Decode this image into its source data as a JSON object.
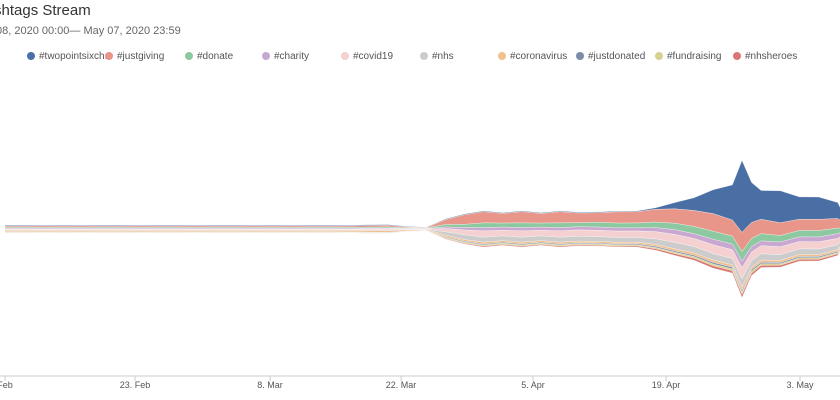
{
  "header": {
    "title": "shtags Stream",
    "subtitle": "08, 2020 00:00— May 07, 2020 23:59"
  },
  "colors": {
    "#twopointsixch...": "#4a6fa5",
    "#justgiving": "#e8968a",
    "#donate": "#8cc9a0",
    "#charity": "#c8a8d0",
    "#covid19": "#f5d0d0",
    "#nhs": "#cccccc",
    "#coronavirus": "#f0c090",
    "#justdonated": "#7a8ca8",
    "#fundraising": "#d8d090",
    "#nhsheroes": "#d87870"
  },
  "chart_data": {
    "type": "area",
    "subtype": "streamgraph",
    "x_ticks": [
      "Feb",
      "23. Feb",
      "8. Mar",
      "22. Mar",
      "5. Apr",
      "19. Apr",
      "3. May"
    ],
    "x": [
      "Feb 09",
      "Feb 11",
      "Feb 13",
      "Feb 15",
      "Feb 17",
      "Feb 19",
      "Feb 21",
      "Feb 23",
      "Feb 25",
      "Feb 27",
      "Feb 29",
      "Mar 02",
      "Mar 04",
      "Mar 06",
      "Mar 08",
      "Mar 10",
      "Mar 12",
      "Mar 14",
      "Mar 16",
      "Mar 18",
      "Mar 20",
      "Mar 22",
      "Mar 24",
      "Mar 26",
      "Mar 28",
      "Mar 30",
      "Apr 01",
      "Apr 03",
      "Apr 05",
      "Apr 07",
      "Apr 09",
      "Apr 11",
      "Apr 13",
      "Apr 15",
      "Apr 17",
      "Apr 19",
      "Apr 21",
      "Apr 23",
      "Apr 25",
      "Apr 26",
      "Apr 27",
      "Apr 28",
      "Apr 30",
      "May 02",
      "May 04",
      "May 06",
      "May 07"
    ],
    "series": [
      {
        "name": "#twopointsixch...",
        "values": [
          0.5,
          0.5,
          0.5,
          0.5,
          0.5,
          0.5,
          0.5,
          0.5,
          0.5,
          0.5,
          0.5,
          0.5,
          0.5,
          0.5,
          0.5,
          0.5,
          0.5,
          0.5,
          0.5,
          0.5,
          0.5,
          0.4,
          0.2,
          0.5,
          0.5,
          0.5,
          0.5,
          0.5,
          0.5,
          0.5,
          0.5,
          0.5,
          0.5,
          0.5,
          1,
          4,
          8,
          15,
          22,
          45,
          25,
          18,
          20,
          14,
          14,
          10,
          2
        ]
      },
      {
        "name": "#justgiving",
        "values": [
          0.8,
          0.8,
          0.9,
          0.8,
          0.9,
          0.8,
          0.8,
          0.9,
          0.8,
          0.8,
          0.9,
          0.8,
          0.8,
          0.9,
          0.8,
          0.9,
          0.8,
          0.8,
          0.9,
          1,
          1,
          0.5,
          0.3,
          3,
          6,
          7,
          6,
          7,
          6,
          7,
          6,
          6,
          7,
          7,
          8,
          9,
          10,
          11,
          10,
          12,
          10,
          9,
          8,
          7,
          7,
          6,
          2
        ]
      },
      {
        "name": "#donate",
        "values": [
          0.6,
          0.6,
          0.6,
          0.6,
          0.6,
          0.6,
          0.6,
          0.6,
          0.6,
          0.6,
          0.6,
          0.6,
          0.6,
          0.6,
          0.6,
          0.6,
          0.6,
          0.6,
          0.6,
          0.6,
          0.7,
          0.4,
          0.3,
          1.5,
          2,
          3,
          2.5,
          3,
          2.5,
          3,
          2.5,
          3,
          3,
          3,
          3.5,
          4,
          4.5,
          5,
          5,
          6,
          5,
          4.5,
          4,
          4,
          4,
          3.5,
          1
        ]
      },
      {
        "name": "#charity",
        "values": [
          0.5,
          0.5,
          0.5,
          0.5,
          0.5,
          0.5,
          0.5,
          0.5,
          0.5,
          0.5,
          0.5,
          0.5,
          0.5,
          0.5,
          0.5,
          0.5,
          0.5,
          0.5,
          0.5,
          0.5,
          0.5,
          0.3,
          0.2,
          1,
          1.5,
          2,
          2,
          2,
          2,
          2,
          2,
          2,
          2,
          2,
          2.5,
          3,
          3,
          3.5,
          3.5,
          4,
          3.5,
          3,
          3,
          3,
          3,
          3,
          0.8
        ]
      },
      {
        "name": "#covid19",
        "values": [
          0.5,
          0.5,
          0.5,
          0.5,
          0.5,
          0.5,
          0.5,
          0.5,
          0.5,
          0.5,
          0.5,
          0.5,
          0.5,
          0.5,
          0.5,
          0.5,
          0.5,
          0.5,
          0.5,
          0.6,
          0.7,
          0.4,
          0.3,
          2,
          3,
          4,
          3.5,
          4,
          3.5,
          4,
          4,
          4,
          4,
          4,
          4.5,
          5,
          5,
          5.5,
          5.5,
          7,
          5.5,
          5,
          5,
          4.5,
          4.5,
          4,
          1
        ]
      },
      {
        "name": "#nhs",
        "values": [
          0.3,
          0.3,
          0.3,
          0.3,
          0.3,
          0.3,
          0.3,
          0.3,
          0.3,
          0.3,
          0.3,
          0.3,
          0.3,
          0.3,
          0.3,
          0.3,
          0.3,
          0.3,
          0.3,
          0.4,
          0.5,
          0.3,
          0.2,
          2,
          3,
          3,
          3,
          3,
          3,
          3,
          3,
          3,
          3,
          3,
          3.5,
          4,
          4,
          4,
          4,
          5,
          4,
          4,
          3.5,
          3.5,
          3.5,
          3,
          1
        ]
      },
      {
        "name": "#coronavirus",
        "values": [
          0.8,
          0.8,
          0.8,
          0.8,
          0.8,
          0.8,
          0.8,
          0.8,
          0.8,
          0.8,
          0.8,
          0.8,
          0.8,
          0.8,
          0.8,
          0.8,
          0.8,
          0.8,
          0.9,
          1,
          1,
          0.6,
          0.4,
          1,
          1,
          1.2,
          1,
          1.2,
          1,
          1.2,
          1,
          1,
          1,
          1,
          1.2,
          1.3,
          1.4,
          1.5,
          1.5,
          2,
          1.5,
          1.4,
          1.3,
          1.3,
          1.2,
          1.1,
          0.4
        ]
      },
      {
        "name": "#justdonated",
        "values": [
          0.2,
          0.2,
          0.2,
          0.2,
          0.2,
          0.2,
          0.2,
          0.2,
          0.2,
          0.2,
          0.2,
          0.2,
          0.2,
          0.2,
          0.2,
          0.2,
          0.2,
          0.2,
          0.2,
          0.2,
          0.2,
          0.1,
          0.1,
          0.5,
          0.6,
          0.6,
          0.6,
          0.6,
          0.6,
          0.6,
          0.6,
          0.6,
          0.6,
          0.6,
          0.7,
          0.8,
          0.9,
          1,
          1,
          1.2,
          1,
          0.9,
          0.8,
          0.8,
          0.8,
          0.7,
          0.2
        ]
      },
      {
        "name": "#fundraising",
        "values": [
          0.3,
          0.3,
          0.3,
          0.3,
          0.3,
          0.3,
          0.3,
          0.3,
          0.3,
          0.3,
          0.3,
          0.3,
          0.3,
          0.3,
          0.3,
          0.3,
          0.3,
          0.3,
          0.3,
          0.3,
          0.3,
          0.2,
          0.1,
          0.6,
          0.7,
          0.7,
          0.7,
          0.7,
          0.7,
          0.7,
          0.7,
          0.7,
          0.7,
          0.7,
          0.8,
          0.9,
          1,
          1.1,
          1.1,
          1.5,
          1.1,
          1,
          0.9,
          0.9,
          0.9,
          0.8,
          0.2
        ]
      },
      {
        "name": "#nhsheroes",
        "values": [
          0.1,
          0.1,
          0.1,
          0.1,
          0.1,
          0.1,
          0.1,
          0.1,
          0.1,
          0.1,
          0.1,
          0.1,
          0.1,
          0.1,
          0.1,
          0.1,
          0.1,
          0.1,
          0.1,
          0.1,
          0.1,
          0.1,
          0.1,
          0.4,
          0.5,
          0.6,
          0.6,
          0.6,
          0.6,
          0.6,
          0.6,
          0.6,
          0.6,
          0.7,
          0.9,
          1.1,
          1.3,
          1.5,
          1.5,
          2,
          1.5,
          1.3,
          1.2,
          1.1,
          1.1,
          1,
          0.3
        ]
      }
    ],
    "legend_position": "top",
    "grid": false
  }
}
